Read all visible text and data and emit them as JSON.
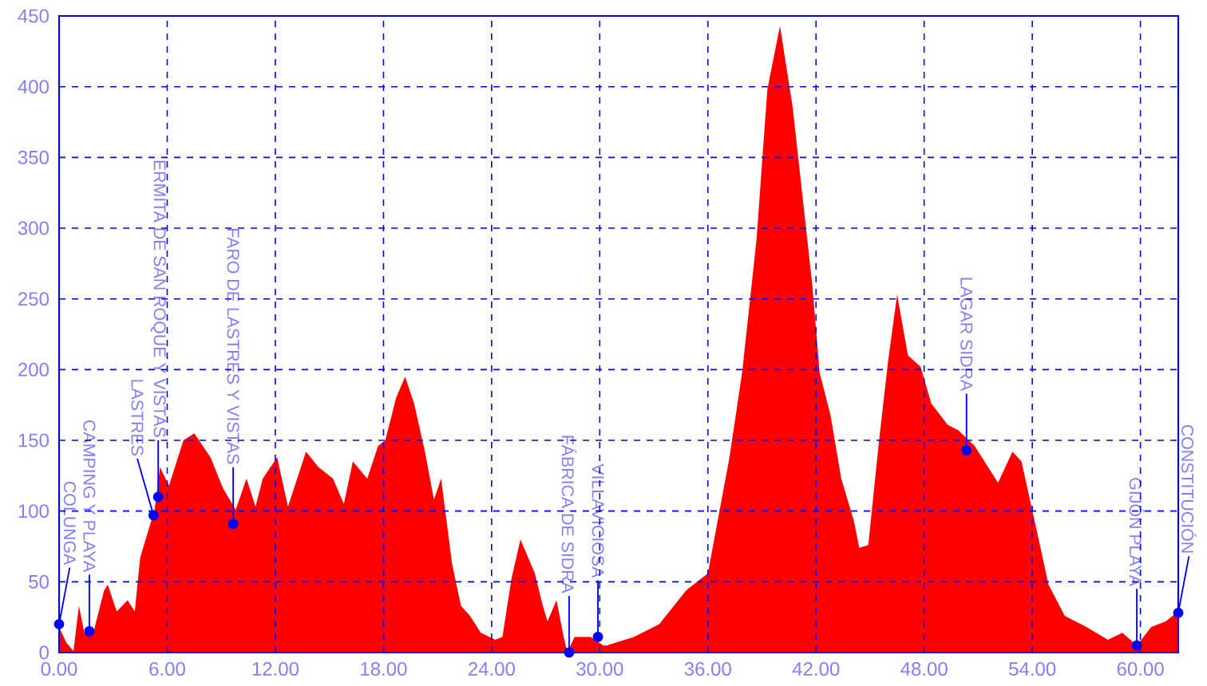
{
  "chart_data": {
    "type": "area",
    "color": "#ff0000",
    "x": [
      0,
      0.4,
      0.8,
      1.1,
      1.4,
      1.9,
      2.5,
      2.7,
      3.2,
      3.8,
      4.2,
      4.5,
      5.3,
      5.6,
      6.1,
      6.9,
      7.5,
      8.4,
      9.1,
      9.8,
      10.4,
      10.9,
      11.3,
      12.1,
      12.7,
      13.7,
      14.4,
      15.2,
      15.8,
      16.3,
      17.1,
      17.7,
      18.1,
      18.7,
      19.2,
      19.7,
      20.3,
      20.8,
      21.2,
      21.8,
      22.3,
      22.8,
      23.4,
      24.2,
      24.6,
      25.1,
      25.6,
      26.4,
      26.8,
      27.1,
      27.6,
      28.0,
      28.2,
      28.6,
      29.5,
      30.2,
      30.4,
      31.9,
      33.3,
      34.8,
      36.0,
      36.6,
      37.2,
      37.9,
      38.7,
      39.3,
      40.0,
      40.7,
      41.8,
      42.2,
      42.8,
      43.4,
      44.1,
      44.4,
      44.9,
      45.5,
      46.0,
      46.5,
      47.1,
      47.8,
      48.4,
      49.3,
      49.9,
      50.8,
      52.1,
      52.9,
      53.4,
      54.2,
      54.9,
      55.8,
      57.0,
      58.2,
      59.0,
      59.8,
      60.6,
      61.4,
      62.1
    ],
    "values": [
      18,
      7,
      1,
      33,
      14,
      14,
      44,
      48,
      29,
      37,
      29,
      67,
      101,
      131,
      118,
      150,
      155,
      138,
      116,
      101,
      123,
      103,
      123,
      138,
      103,
      142,
      131,
      123,
      105,
      135,
      123,
      146,
      150,
      180,
      195,
      176,
      142,
      108,
      123,
      63,
      33,
      26,
      14,
      9,
      11,
      52,
      80,
      56,
      35,
      22,
      37,
      11,
      0,
      11,
      11,
      5,
      5,
      11,
      20,
      44,
      56,
      97,
      138,
      198,
      292,
      398,
      443,
      386,
      259,
      198,
      168,
      123,
      93,
      74,
      76,
      150,
      206,
      253,
      210,
      202,
      176,
      161,
      157,
      146,
      120,
      142,
      135,
      89,
      48,
      26,
      18,
      9,
      14,
      5,
      18,
      22,
      29
    ],
    "xlim": [
      0,
      62.1
    ],
    "ylim": [
      0,
      450
    ],
    "xticks": [
      {
        "value": 0,
        "label": "0.00"
      },
      {
        "value": 6,
        "label": "6.00"
      },
      {
        "value": 12,
        "label": "12.00"
      },
      {
        "value": 18,
        "label": "18.00"
      },
      {
        "value": 24,
        "label": "24.00"
      },
      {
        "value": 30,
        "label": "30.00"
      },
      {
        "value": 36,
        "label": "36.00"
      },
      {
        "value": 42,
        "label": "42.00"
      },
      {
        "value": 48,
        "label": "48.00"
      },
      {
        "value": 54,
        "label": "54.00"
      },
      {
        "value": 60,
        "label": "60.00"
      }
    ],
    "yticks": [
      0,
      50,
      100,
      150,
      200,
      250,
      300,
      350,
      400,
      450
    ],
    "grid": true,
    "annotations": [
      {
        "text": "COLUNGA",
        "x": 0,
        "y": 20
      },
      {
        "text": "CAMPING Y PLAYA",
        "x": 1.68,
        "y": 15
      },
      {
        "text": "LASTRES",
        "x": 5.24,
        "y": 97
      },
      {
        "text": "ERMITA DE SAN ROQUE Y VISTAS",
        "x": 5.5,
        "y": 110
      },
      {
        "text": "FARO DE LASTRES Y VISTAS",
        "x": 9.66,
        "y": 91
      },
      {
        "text": "FÁBRICA DE SIDRA",
        "x": 28.3,
        "y": 0
      },
      {
        "text": "VILLAVICIOSA",
        "x": 29.9,
        "y": 11
      },
      {
        "text": "LAGAR SIDRA",
        "x": 50.35,
        "y": 143
      },
      {
        "text": "GIJÓN PLAYA",
        "x": 59.8,
        "y": 5
      },
      {
        "text": "CONSTITUCIÓN",
        "x": 62.1,
        "y": 28
      }
    ]
  }
}
